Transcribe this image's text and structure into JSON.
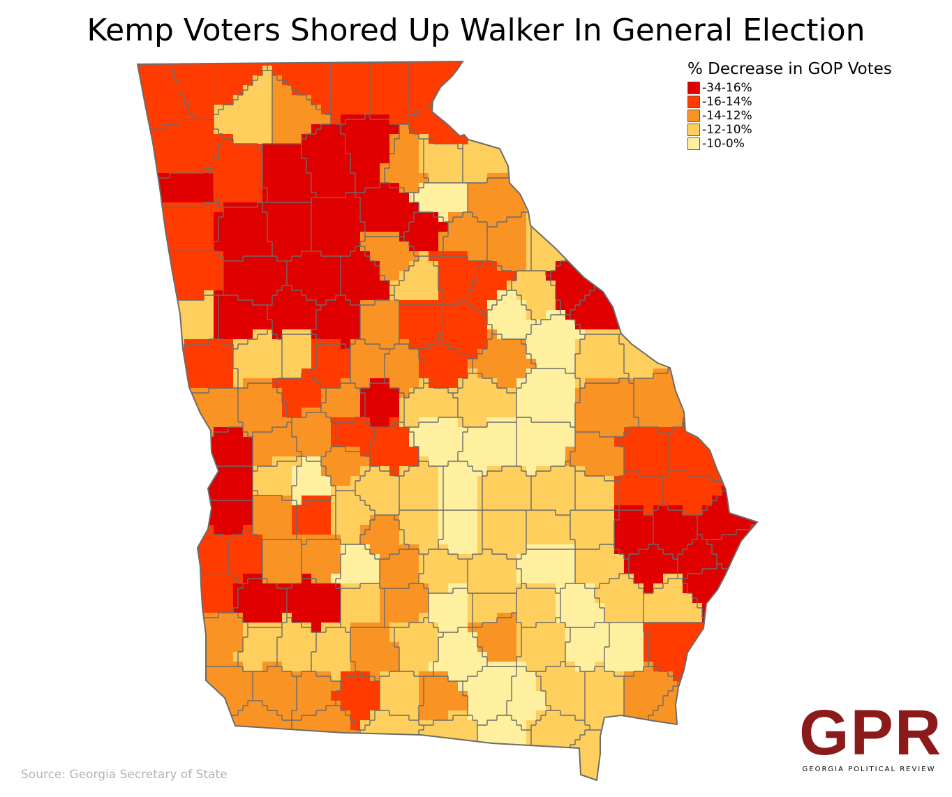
{
  "title": "Kemp Voters Shored Up Walker In General Election",
  "legend": {
    "title": "% Decrease in GOP Votes",
    "items": [
      {
        "label": "-34-16%",
        "color": "#e00000"
      },
      {
        "label": "-16-14%",
        "color": "#ff3b00"
      },
      {
        "label": "-14-12%",
        "color": "#f99324"
      },
      {
        "label": "-12-10%",
        "color": "#fecf5c"
      },
      {
        "label": "-10-0%",
        "color": "#fff0a0"
      }
    ]
  },
  "source": "Source: Georgia Secretary of State",
  "logo": {
    "mark": "GPR",
    "subtitle": "GEORGIA POLITICAL REVIEW"
  },
  "map_data": {
    "state": "Georgia",
    "unit": "county",
    "outline_color": "#6b6b6b"
  }
}
